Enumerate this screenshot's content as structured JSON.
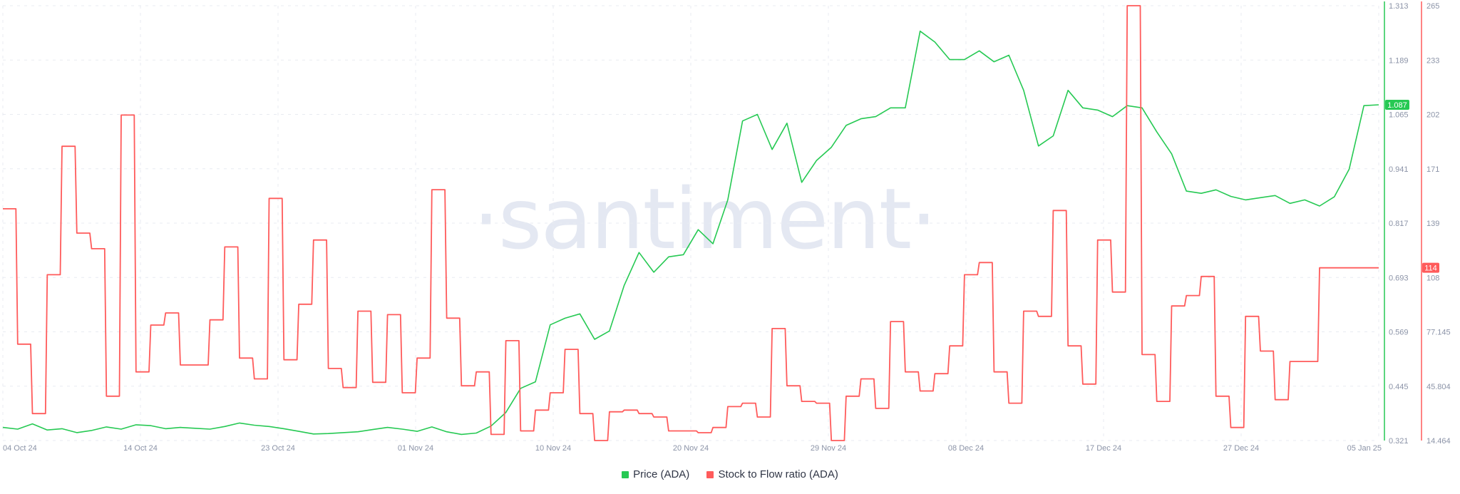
{
  "watermark": "·santiment·",
  "colors": {
    "price": "#26c953",
    "sf": "#ff5b5b",
    "grid": "#e8ebf1",
    "axis_text": "#8b93a7"
  },
  "legend": {
    "items": [
      {
        "label": "Price (ADA)",
        "color": "#26c953"
      },
      {
        "label": "Stock to Flow ratio (ADA)",
        "color": "#ff5b5b"
      }
    ]
  },
  "badges": {
    "price_value": "1.087",
    "sf_value": "114"
  },
  "chart_data": {
    "type": "line",
    "x_ticks": [
      "04 Oct 24",
      "14 Oct 24",
      "23 Oct 24",
      "01 Nov 24",
      "10 Nov 24",
      "20 Nov 24",
      "29 Nov 24",
      "08 Dec 24",
      "17 Dec 24",
      "27 Dec 24",
      "05 Jan 25"
    ],
    "x_range": [
      0,
      93
    ],
    "grid": true,
    "legend_position": "bottom",
    "y_axis_price": {
      "ticks": [
        "0.321",
        "0.445",
        "0.569",
        "0.693",
        "0.817",
        "0.941",
        "1.065",
        "1.189",
        "1.313"
      ],
      "range": [
        0.321,
        1.313
      ]
    },
    "y_axis_sf": {
      "ticks": [
        "14.464",
        "45.804",
        "77.145",
        "108",
        "139",
        "171",
        "202",
        "233",
        "265"
      ],
      "range": [
        14.464,
        265
      ]
    },
    "series": [
      {
        "name": "Price (ADA)",
        "axis": "price",
        "points": [
          [
            0,
            0.351
          ],
          [
            1,
            0.347
          ],
          [
            2,
            0.359
          ],
          [
            3,
            0.345
          ],
          [
            4,
            0.348
          ],
          [
            5,
            0.339
          ],
          [
            6,
            0.344
          ],
          [
            7,
            0.352
          ],
          [
            8,
            0.347
          ],
          [
            9,
            0.357
          ],
          [
            10,
            0.355
          ],
          [
            11,
            0.348
          ],
          [
            12,
            0.351
          ],
          [
            13,
            0.349
          ],
          [
            14,
            0.347
          ],
          [
            15,
            0.353
          ],
          [
            16,
            0.361
          ],
          [
            17,
            0.356
          ],
          [
            18,
            0.353
          ],
          [
            19,
            0.348
          ],
          [
            20,
            0.342
          ],
          [
            21,
            0.336
          ],
          [
            22,
            0.337
          ],
          [
            23,
            0.339
          ],
          [
            24,
            0.341
          ],
          [
            25,
            0.346
          ],
          [
            26,
            0.351
          ],
          [
            27,
            0.347
          ],
          [
            28,
            0.342
          ],
          [
            29,
            0.352
          ],
          [
            30,
            0.341
          ],
          [
            31,
            0.335
          ],
          [
            32,
            0.338
          ],
          [
            33,
            0.354
          ],
          [
            34,
            0.385
          ],
          [
            35,
            0.44
          ],
          [
            36,
            0.455
          ],
          [
            37,
            0.585
          ],
          [
            38,
            0.6
          ],
          [
            39,
            0.61
          ],
          [
            40,
            0.552
          ],
          [
            41,
            0.571
          ],
          [
            42,
            0.675
          ],
          [
            43,
            0.75
          ],
          [
            44,
            0.705
          ],
          [
            45,
            0.74
          ],
          [
            46,
            0.745
          ],
          [
            47,
            0.802
          ],
          [
            48,
            0.77
          ],
          [
            49,
            0.87
          ],
          [
            50,
            1.05
          ],
          [
            51,
            1.065
          ],
          [
            52,
            0.985
          ],
          [
            53,
            1.045
          ],
          [
            54,
            0.91
          ],
          [
            55,
            0.96
          ],
          [
            56,
            0.99
          ],
          [
            57,
            1.04
          ],
          [
            58,
            1.055
          ],
          [
            59,
            1.06
          ],
          [
            60,
            1.08
          ],
          [
            61,
            1.08
          ],
          [
            62,
            1.255
          ],
          [
            63,
            1.23
          ],
          [
            64,
            1.19
          ],
          [
            65,
            1.19
          ],
          [
            66,
            1.21
          ],
          [
            67,
            1.185
          ],
          [
            68,
            1.2
          ],
          [
            69,
            1.12
          ],
          [
            70,
            0.993
          ],
          [
            71,
            1.016
          ],
          [
            72,
            1.12
          ],
          [
            73,
            1.08
          ],
          [
            74,
            1.075
          ],
          [
            75,
            1.06
          ],
          [
            76,
            1.085
          ],
          [
            77,
            1.08
          ],
          [
            78,
            1.025
          ],
          [
            79,
            0.975
          ],
          [
            80,
            0.89
          ],
          [
            81,
            0.885
          ],
          [
            82,
            0.893
          ],
          [
            83,
            0.878
          ],
          [
            84,
            0.87
          ],
          [
            85,
            0.875
          ],
          [
            86,
            0.88
          ],
          [
            87,
            0.862
          ],
          [
            88,
            0.87
          ],
          [
            89,
            0.856
          ],
          [
            90,
            0.877
          ],
          [
            91,
            0.94
          ],
          [
            92,
            1.085
          ],
          [
            93,
            1.087
          ]
        ]
      },
      {
        "name": "Stock to Flow ratio (ADA)",
        "axis": "sf",
        "points": [
          [
            0,
            148
          ],
          [
            1,
            70
          ],
          [
            2,
            30
          ],
          [
            3,
            110
          ],
          [
            4,
            184
          ],
          [
            5,
            134
          ],
          [
            6,
            125
          ],
          [
            7,
            40
          ],
          [
            8,
            202
          ],
          [
            9,
            54
          ],
          [
            10,
            81
          ],
          [
            11,
            88
          ],
          [
            12,
            58
          ],
          [
            13,
            58
          ],
          [
            14,
            84
          ],
          [
            15,
            126
          ],
          [
            16,
            62
          ],
          [
            17,
            50
          ],
          [
            18,
            154
          ],
          [
            19,
            61
          ],
          [
            20,
            93
          ],
          [
            21,
            130
          ],
          [
            22,
            56
          ],
          [
            23,
            45
          ],
          [
            24,
            89
          ],
          [
            25,
            48
          ],
          [
            26,
            87
          ],
          [
            27,
            42
          ],
          [
            28,
            62
          ],
          [
            29,
            159
          ],
          [
            30,
            85
          ],
          [
            31,
            46
          ],
          [
            32,
            54
          ],
          [
            33,
            18
          ],
          [
            34,
            72
          ],
          [
            35,
            20
          ],
          [
            36,
            32
          ],
          [
            37,
            42
          ],
          [
            38,
            67
          ],
          [
            39,
            30
          ],
          [
            40,
            14.464
          ],
          [
            41,
            31
          ],
          [
            42,
            32
          ],
          [
            43,
            30
          ],
          [
            44,
            28
          ],
          [
            45,
            20
          ],
          [
            46,
            20
          ],
          [
            47,
            19
          ],
          [
            48,
            22
          ],
          [
            49,
            34
          ],
          [
            50,
            36
          ],
          [
            51,
            28
          ],
          [
            52,
            79
          ],
          [
            53,
            46
          ],
          [
            54,
            37
          ],
          [
            55,
            36
          ],
          [
            56,
            14.464
          ],
          [
            57,
            40
          ],
          [
            58,
            50
          ],
          [
            59,
            33
          ],
          [
            60,
            83
          ],
          [
            61,
            54
          ],
          [
            62,
            43
          ],
          [
            63,
            53
          ],
          [
            64,
            69
          ],
          [
            65,
            110
          ],
          [
            66,
            117
          ],
          [
            67,
            54
          ],
          [
            68,
            36
          ],
          [
            69,
            89
          ],
          [
            70,
            86
          ],
          [
            71,
            147
          ],
          [
            72,
            69
          ],
          [
            73,
            47
          ],
          [
            74,
            130
          ],
          [
            75,
            100
          ],
          [
            76,
            265
          ],
          [
            77,
            64
          ],
          [
            78,
            37
          ],
          [
            79,
            92
          ],
          [
            80,
            98
          ],
          [
            81,
            109
          ],
          [
            82,
            40
          ],
          [
            83,
            22
          ],
          [
            84,
            86
          ],
          [
            85,
            66
          ],
          [
            86,
            38
          ],
          [
            87,
            60
          ],
          [
            88,
            60
          ],
          [
            89,
            114
          ],
          [
            90,
            114
          ],
          [
            91,
            114
          ],
          [
            92,
            114
          ],
          [
            93,
            114
          ]
        ]
      }
    ]
  }
}
